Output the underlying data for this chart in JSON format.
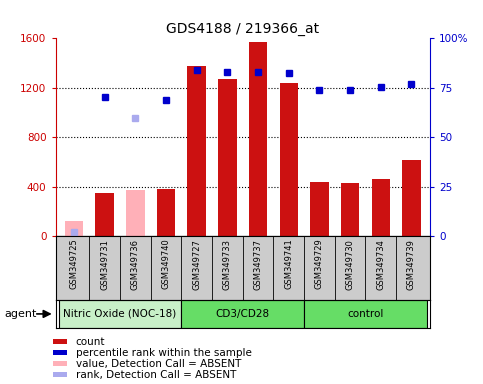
{
  "title": "GDS4188 / 219366_at",
  "samples": [
    "GSM349725",
    "GSM349731",
    "GSM349736",
    "GSM349740",
    "GSM349727",
    "GSM349733",
    "GSM349737",
    "GSM349741",
    "GSM349729",
    "GSM349730",
    "GSM349734",
    "GSM349739"
  ],
  "bar_values": [
    120,
    350,
    370,
    380,
    1380,
    1270,
    1570,
    1240,
    440,
    430,
    460,
    620
  ],
  "bar_absent": [
    true,
    false,
    true,
    false,
    false,
    false,
    false,
    false,
    false,
    false,
    false,
    false
  ],
  "rank_values_pct": [
    1.9,
    70.6,
    60.0,
    68.8,
    83.8,
    83.1,
    83.1,
    82.5,
    73.8,
    73.8,
    75.6,
    76.9
  ],
  "rank_absent": [
    true,
    false,
    true,
    false,
    false,
    false,
    false,
    false,
    false,
    false,
    false,
    false
  ],
  "ylim_left": [
    0,
    1600
  ],
  "ylim_right": [
    0,
    100
  ],
  "yticks_left": [
    0,
    400,
    800,
    1200,
    1600
  ],
  "yticks_right": [
    0,
    25,
    50,
    75,
    100
  ],
  "groups": [
    {
      "label": "Nitric Oxide (NOC-18)",
      "start": 0,
      "end": 4,
      "color": "#c8f0c8"
    },
    {
      "label": "CD3/CD28",
      "start": 4,
      "end": 8,
      "color": "#66dd66"
    },
    {
      "label": "control",
      "start": 8,
      "end": 12,
      "color": "#66dd66"
    }
  ],
  "bar_color_present": "#cc1111",
  "bar_color_absent": "#ffb0b8",
  "rank_color_present": "#0000cc",
  "rank_color_absent": "#aaaaee",
  "background_color": "#ffffff",
  "tick_label_area_color": "#cccccc",
  "agent_label": "agent",
  "legend_items": [
    {
      "color": "#cc1111",
      "label": "count"
    },
    {
      "color": "#0000cc",
      "label": "percentile rank within the sample"
    },
    {
      "color": "#ffb0b8",
      "label": "value, Detection Call = ABSENT"
    },
    {
      "color": "#aaaaee",
      "label": "rank, Detection Call = ABSENT"
    }
  ]
}
